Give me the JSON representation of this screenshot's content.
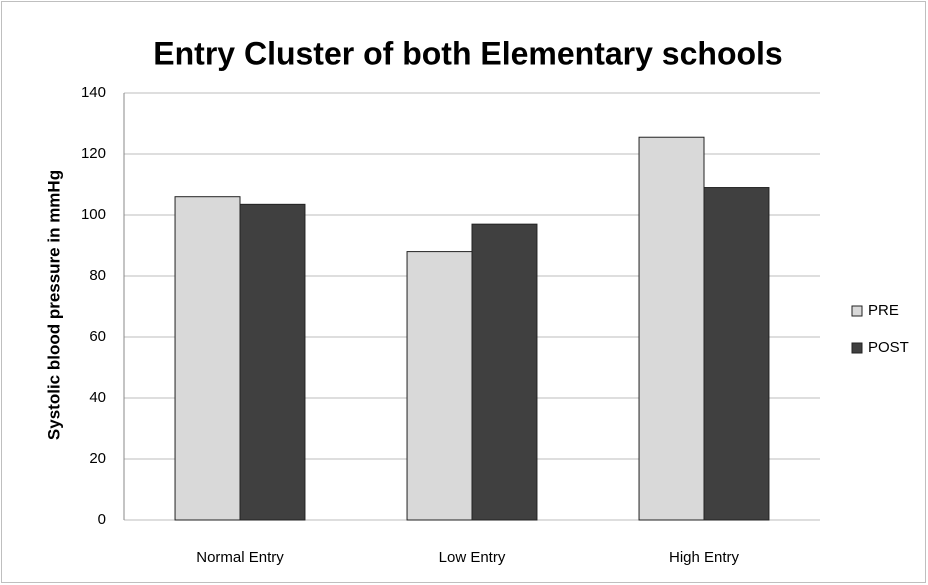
{
  "chart_data": {
    "type": "bar",
    "title": "Entry Cluster of both Elementary schools",
    "y_label": "Systolic blood pressure in mmHg",
    "categories": [
      "Normal Entry",
      "Low Entry",
      "High Entry"
    ],
    "series": [
      {
        "name": "PRE",
        "color": "#d9d9d9",
        "values": [
          106,
          88,
          125.5
        ]
      },
      {
        "name": "POST",
        "color": "#404040",
        "values": [
          103.5,
          97,
          109
        ]
      }
    ],
    "ylim": [
      0,
      140
    ],
    "yticks": [
      0,
      20,
      40,
      60,
      80,
      100,
      120,
      140
    ],
    "grid": true,
    "legend": "right"
  }
}
